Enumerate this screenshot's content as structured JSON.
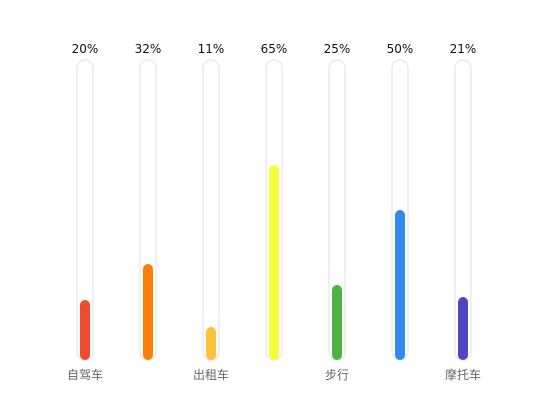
{
  "chart_data": {
    "type": "bar",
    "orientation": "vertical",
    "style": "capsule-progress",
    "categories": [
      "自驾车",
      "",
      "出租车",
      "",
      "步行",
      "",
      "摩托车"
    ],
    "values": [
      20,
      32,
      11,
      65,
      25,
      50,
      21
    ],
    "value_labels": [
      "20%",
      "32%",
      "11%",
      "65%",
      "25%",
      "50%",
      "21%"
    ],
    "unit": "%",
    "ylim": [
      0,
      65
    ],
    "grid": false,
    "colors": [
      "#ee4b2b",
      "#fb7e0b",
      "#fdbf3c",
      "#f4ff3a",
      "#4db342",
      "#3389ee",
      "#4c46c6"
    ],
    "track_color": "#e6e6ea",
    "label_color": "#111111",
    "category_color": "#666666"
  }
}
